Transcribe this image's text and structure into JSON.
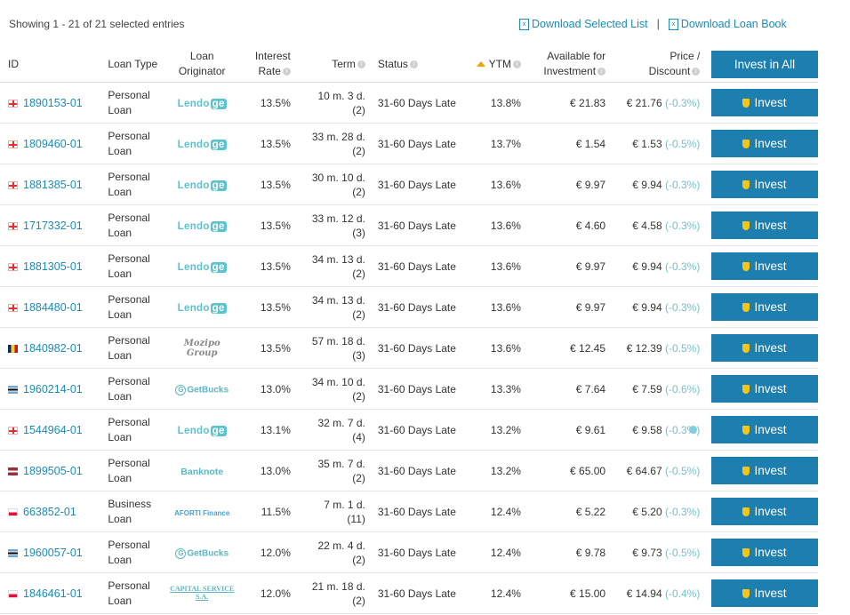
{
  "summary": "Showing 1 - 21 of 21 selected entries",
  "downloads": {
    "selected": "Download Selected List",
    "separator": "|",
    "book": "Download Loan Book"
  },
  "columns": {
    "id": "ID",
    "type": "Loan Type",
    "originator_l1": "Loan",
    "originator_l2": "Originator",
    "rate_l1": "Interest",
    "rate_l2": "Rate",
    "term": "Term",
    "status": "Status",
    "ytm": "YTM",
    "avail_l1": "Available for",
    "avail_l2": "Investment",
    "price_l1": "Price /",
    "price_l2": "Discount",
    "invest_all": "Invest in All"
  },
  "invest_label": "Invest",
  "rows": [
    {
      "flag": "ge",
      "id": "1890153-01",
      "type1": "Personal",
      "type2": "Loan",
      "orig": "lendo",
      "rate": "13.5%",
      "term1": "10 m. 3 d.",
      "term2": "(2)",
      "status": "31-60 Days Late",
      "ytm": "13.8%",
      "avail": "€ 21.83",
      "price": "€ 21.76",
      "disc": "(-0.3%)"
    },
    {
      "flag": "ge",
      "id": "1809460-01",
      "type1": "Personal",
      "type2": "Loan",
      "orig": "lendo",
      "rate": "13.5%",
      "term1": "33 m. 28 d.",
      "term2": "(2)",
      "status": "31-60 Days Late",
      "ytm": "13.7%",
      "avail": "€ 1.54",
      "price": "€ 1.53",
      "disc": "(-0.5%)"
    },
    {
      "flag": "ge",
      "id": "1881385-01",
      "type1": "Personal",
      "type2": "Loan",
      "orig": "lendo",
      "rate": "13.5%",
      "term1": "30 m. 10 d.",
      "term2": "(2)",
      "status": "31-60 Days Late",
      "ytm": "13.6%",
      "avail": "€ 9.97",
      "price": "€ 9.94",
      "disc": "(-0.3%)"
    },
    {
      "flag": "ge",
      "id": "1717332-01",
      "type1": "Personal",
      "type2": "Loan",
      "orig": "lendo",
      "rate": "13.5%",
      "term1": "33 m. 12 d.",
      "term2": "(3)",
      "status": "31-60 Days Late",
      "ytm": "13.6%",
      "avail": "€ 4.60",
      "price": "€ 4.58",
      "disc": "(-0.3%)"
    },
    {
      "flag": "ge",
      "id": "1881305-01",
      "type1": "Personal",
      "type2": "Loan",
      "orig": "lendo",
      "rate": "13.5%",
      "term1": "34 m. 13 d.",
      "term2": "(2)",
      "status": "31-60 Days Late",
      "ytm": "13.6%",
      "avail": "€ 9.97",
      "price": "€ 9.94",
      "disc": "(-0.3%)"
    },
    {
      "flag": "ge",
      "id": "1884480-01",
      "type1": "Personal",
      "type2": "Loan",
      "orig": "lendo",
      "rate": "13.5%",
      "term1": "34 m. 13 d.",
      "term2": "(2)",
      "status": "31-60 Days Late",
      "ytm": "13.6%",
      "avail": "€ 9.97",
      "price": "€ 9.94",
      "disc": "(-0.3%)"
    },
    {
      "flag": "ro",
      "id": "1840982-01",
      "type1": "Personal",
      "type2": "Loan",
      "orig": "mozipo",
      "rate": "13.5%",
      "term1": "57 m. 18 d.",
      "term2": "(3)",
      "status": "31-60 Days Late",
      "ytm": "13.6%",
      "avail": "€ 12.45",
      "price": "€ 12.39",
      "disc": "(-0.5%)"
    },
    {
      "flag": "bw",
      "id": "1960214-01",
      "type1": "Personal",
      "type2": "Loan",
      "orig": "getbucks",
      "rate": "13.0%",
      "term1": "34 m. 10 d.",
      "term2": "(2)",
      "status": "31-60 Days Late",
      "ytm": "13.3%",
      "avail": "€ 7.64",
      "price": "€ 7.59",
      "disc": "(-0.6%)"
    },
    {
      "flag": "ge",
      "id": "1544964-01",
      "type1": "Personal",
      "type2": "Loan",
      "orig": "lendo",
      "rate": "13.1%",
      "term1": "32 m. 7 d.",
      "term2": "(4)",
      "status": "31-60 Days Late",
      "ytm": "13.2%",
      "avail": "€ 9.61",
      "price": "€ 9.58",
      "disc": "(-0.3%)",
      "dot": true
    },
    {
      "flag": "lv",
      "id": "1899505-01",
      "type1": "Personal",
      "type2": "Loan",
      "orig": "banknote",
      "rate": "13.0%",
      "term1": "35 m. 7 d.",
      "term2": "(2)",
      "status": "31-60 Days Late",
      "ytm": "13.2%",
      "avail": "€ 65.00",
      "price": "€ 64.67",
      "disc": "(-0.5%)"
    },
    {
      "flag": "pl",
      "id": "663852-01",
      "type1": "Business",
      "type2": "Loan",
      "orig": "aforti",
      "rate": "11.5%",
      "term1": "7 m. 1 d.",
      "term2": "(11)",
      "status": "31-60 Days Late",
      "ytm": "12.4%",
      "avail": "€ 5.22",
      "price": "€ 5.20",
      "disc": "(-0.3%)"
    },
    {
      "flag": "bw",
      "id": "1960057-01",
      "type1": "Personal",
      "type2": "Loan",
      "orig": "getbucks",
      "rate": "12.0%",
      "term1": "22 m. 4 d.",
      "term2": "(2)",
      "status": "31-60 Days Late",
      "ytm": "12.4%",
      "avail": "€ 9.78",
      "price": "€ 9.73",
      "disc": "(-0.5%)"
    },
    {
      "flag": "pl",
      "id": "1846461-01",
      "type1": "Personal",
      "type2": "Loan",
      "orig": "capital",
      "rate": "12.0%",
      "term1": "21 m. 18 d.",
      "term2": "(2)",
      "status": "31-60 Days Late",
      "ytm": "12.4%",
      "avail": "€ 15.00",
      "price": "€ 14.94",
      "disc": "(-0.4%)"
    }
  ],
  "logos": {
    "lendo": {
      "text": "Lendo",
      "suffix": "ge"
    },
    "mozipo": {
      "text": "Mozipo Group"
    },
    "getbucks": {
      "text": "GetBucks",
      "mark": "G"
    },
    "banknote": {
      "text": "Banknote"
    },
    "aforti": {
      "text": "AFORTI Finance"
    },
    "capital": {
      "text": "CAPITAL SERVICE S.A."
    }
  },
  "colors": {
    "accent": "#1c7fb0",
    "link": "#1d8bb5",
    "discount": "#6fc3cf",
    "shield": "#f5c518"
  }
}
